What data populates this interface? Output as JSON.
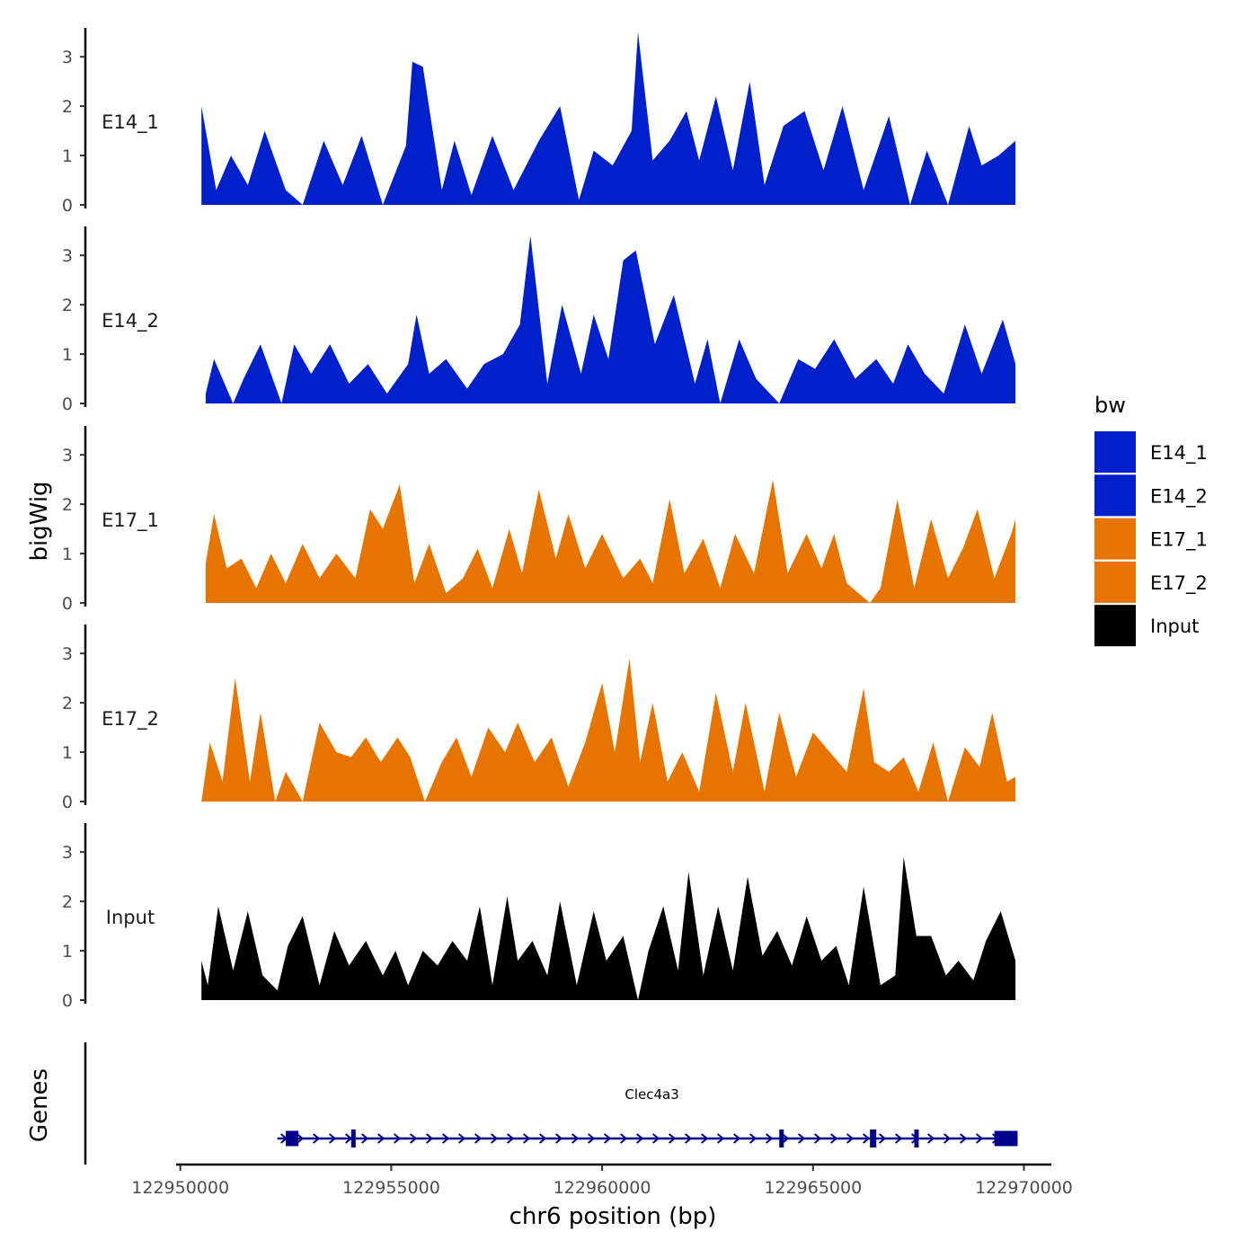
{
  "chart_data": {
    "type": "area",
    "title": "",
    "ylabel": "bigWig",
    "xlabel": "chr6 position (bp)",
    "xlim": [
      122949900,
      122970650
    ],
    "ylim": [
      0,
      3.55
    ],
    "x_ticks": [
      122950000,
      122955000,
      122960000,
      122965000,
      122970000
    ],
    "x_tick_labels": [
      "122950000",
      "122955000",
      "122960000",
      "122965000",
      "122970000"
    ],
    "y_ticks": [
      0,
      1,
      2,
      3
    ],
    "y_tick_labels": [
      "0",
      "1",
      "2",
      "3"
    ],
    "legend": {
      "title": "bw",
      "position": "right",
      "items": [
        {
          "label": "E14_1",
          "color": "#0020CC"
        },
        {
          "label": "E14_2",
          "color": "#0020CC"
        },
        {
          "label": "E17_1",
          "color": "#E87400"
        },
        {
          "label": "E17_2",
          "color": "#E87400"
        },
        {
          "label": "Input",
          "color": "#000000"
        }
      ]
    },
    "series": [
      {
        "name": "E14_1",
        "color": "#0020CC",
        "x": [
          122950500,
          122950850,
          122951200,
          122951600,
          122952000,
          122952500,
          122952900,
          122953400,
          122953850,
          122954300,
          122954800,
          122955350,
          122955500,
          122955750,
          122956200,
          122956500,
          122956900,
          122957400,
          122957900,
          122958500,
          122959000,
          122959450,
          122959800,
          122960250,
          122960700,
          122960850,
          122961200,
          122961600,
          122962000,
          122962300,
          122962700,
          122963100,
          122963500,
          122963850,
          122964300,
          122964800,
          122965250,
          122965700,
          122966200,
          122966800,
          122967300,
          122967700,
          122968200,
          122968700,
          122969000,
          122969400,
          122969800
        ],
        "y": [
          2.0,
          0.3,
          1.0,
          0.4,
          1.5,
          0.3,
          0.0,
          1.3,
          0.4,
          1.4,
          0.0,
          1.2,
          2.9,
          2.8,
          0.3,
          1.3,
          0.2,
          1.4,
          0.3,
          1.3,
          2.0,
          0.1,
          1.1,
          0.8,
          1.5,
          3.5,
          0.9,
          1.3,
          1.9,
          0.9,
          2.2,
          0.7,
          2.5,
          0.4,
          1.6,
          1.9,
          0.7,
          2.0,
          0.3,
          1.8,
          0.0,
          1.1,
          0.0,
          1.6,
          0.8,
          1.0,
          1.3
        ]
      },
      {
        "name": "E14_2",
        "color": "#0020CC",
        "x": [
          122950600,
          122950800,
          122951250,
          122951500,
          122951900,
          122952400,
          122952700,
          122953100,
          122953550,
          122954000,
          122954450,
          122954900,
          122955400,
          122955600,
          122955900,
          122956300,
          122956800,
          122957200,
          122957650,
          122958050,
          122958300,
          122958700,
          122959050,
          122959500,
          122959800,
          122960150,
          122960500,
          122960800,
          122961250,
          122961700,
          122962200,
          122962500,
          122962800,
          122963250,
          122963650,
          122964200,
          122964650,
          122965050,
          122965500,
          122966000,
          122966500,
          122966900,
          122967250,
          122967650,
          122968100,
          122968600,
          122969000,
          122969500,
          122969800
        ],
        "y": [
          0.2,
          0.9,
          0.0,
          0.5,
          1.2,
          0.0,
          1.2,
          0.6,
          1.2,
          0.4,
          0.8,
          0.2,
          0.8,
          1.8,
          0.6,
          0.9,
          0.3,
          0.8,
          1.0,
          1.6,
          3.4,
          0.4,
          2.0,
          0.6,
          1.8,
          0.9,
          2.9,
          3.1,
          1.2,
          2.2,
          0.4,
          1.3,
          0.0,
          1.3,
          0.5,
          0.0,
          0.9,
          0.7,
          1.3,
          0.5,
          0.9,
          0.4,
          1.2,
          0.6,
          0.2,
          1.6,
          0.6,
          1.7,
          0.8
        ]
      },
      {
        "name": "E17_1",
        "color": "#E87400",
        "x": [
          122950600,
          122950800,
          122951100,
          122951450,
          122951800,
          122952150,
          122952500,
          122952900,
          122953300,
          122953700,
          122954150,
          122954500,
          122954800,
          122955200,
          122955550,
          122955900,
          122956300,
          122956700,
          122957050,
          122957400,
          122957800,
          122958100,
          122958500,
          122958900,
          122959200,
          122959600,
          122960000,
          122960500,
          122960900,
          122961200,
          122961600,
          122961950,
          122962400,
          122962800,
          122963150,
          122963600,
          122964050,
          122964400,
          122964850,
          122965200,
          122965500,
          122965800,
          122966350,
          122966600,
          122967000,
          122967400,
          122967800,
          122968200,
          122968550,
          122968900,
          122969300,
          122969700,
          122969800
        ],
        "y": [
          0.8,
          1.8,
          0.7,
          0.9,
          0.3,
          1.0,
          0.4,
          1.2,
          0.5,
          1.0,
          0.5,
          1.9,
          1.5,
          2.4,
          0.4,
          1.2,
          0.2,
          0.5,
          1.1,
          0.3,
          1.5,
          0.6,
          2.3,
          0.9,
          1.8,
          0.7,
          1.4,
          0.5,
          0.9,
          0.4,
          2.1,
          0.6,
          1.3,
          0.3,
          1.4,
          0.6,
          2.5,
          0.6,
          1.4,
          0.7,
          1.4,
          0.4,
          0.0,
          0.3,
          2.1,
          0.3,
          1.7,
          0.5,
          1.1,
          1.9,
          0.5,
          1.4,
          1.7
        ]
      },
      {
        "name": "E17_2",
        "color": "#E87400",
        "x": [
          122950500,
          122950700,
          122951000,
          122951300,
          122951650,
          122951900,
          122952250,
          122952500,
          122952900,
          122953300,
          122953700,
          122954050,
          122954400,
          122954750,
          122955150,
          122955450,
          122955800,
          122956200,
          122956550,
          122956900,
          122957300,
          122957700,
          122958000,
          122958400,
          122958800,
          122959200,
          122959600,
          122960000,
          122960300,
          122960650,
          122960900,
          122961200,
          122961550,
          122961900,
          122962300,
          122962700,
          122963100,
          122963400,
          122963850,
          122964200,
          122964600,
          122965000,
          122965400,
          122965800,
          122966200,
          122966450,
          122966800,
          122967150,
          122967500,
          122967850,
          122968200,
          122968600,
          122968950,
          122969250,
          122969600,
          122969800
        ],
        "y": [
          0.0,
          1.2,
          0.4,
          2.5,
          0.4,
          1.8,
          0.0,
          0.6,
          0.0,
          1.6,
          1.0,
          0.9,
          1.3,
          0.8,
          1.3,
          0.9,
          0.0,
          0.8,
          1.3,
          0.5,
          1.5,
          1.0,
          1.6,
          0.8,
          1.3,
          0.3,
          1.2,
          2.4,
          1.0,
          2.9,
          0.8,
          2.0,
          0.4,
          1.0,
          0.2,
          2.2,
          0.6,
          2.0,
          0.2,
          1.8,
          0.5,
          1.4,
          1.0,
          0.6,
          2.3,
          0.8,
          0.6,
          0.9,
          0.2,
          1.2,
          0.0,
          1.1,
          0.7,
          1.8,
          0.4,
          0.5
        ]
      },
      {
        "name": "Input",
        "color": "#000000",
        "x": [
          122950500,
          122950650,
          122950900,
          122951250,
          122951600,
          122951950,
          122952300,
          122952550,
          122952900,
          122953300,
          122953650,
          122954000,
          122954400,
          122954800,
          122955100,
          122955400,
          122955750,
          122956100,
          122956450,
          122956800,
          122957100,
          122957400,
          122957750,
          122958000,
          122958350,
          122958700,
          122959000,
          122959400,
          122959800,
          122960100,
          122960500,
          122960850,
          122961100,
          122961450,
          122961800,
          122962050,
          122962400,
          122962750,
          122963100,
          122963450,
          122963800,
          122964150,
          122964500,
          122964850,
          122965200,
          122965550,
          122965850,
          122966200,
          122966600,
          122966950,
          122967150,
          122967450,
          122967800,
          122968150,
          122968450,
          122968800,
          122969100,
          122969450,
          122969800
        ],
        "y": [
          0.8,
          0.3,
          1.9,
          0.6,
          1.8,
          0.5,
          0.2,
          1.1,
          1.7,
          0.3,
          1.4,
          0.7,
          1.2,
          0.5,
          1.0,
          0.3,
          1.0,
          0.7,
          1.2,
          0.8,
          1.9,
          0.3,
          2.1,
          0.8,
          1.2,
          0.5,
          2.0,
          0.3,
          1.8,
          0.8,
          1.3,
          0.0,
          1.0,
          1.9,
          0.6,
          2.6,
          0.5,
          1.9,
          0.6,
          2.5,
          0.9,
          1.4,
          0.7,
          1.7,
          0.8,
          1.1,
          0.3,
          2.3,
          0.3,
          0.5,
          2.9,
          1.3,
          1.3,
          0.5,
          0.8,
          0.4,
          1.2,
          1.8,
          0.8
        ]
      }
    ],
    "gene_track": {
      "label": "Genes",
      "gene_name": "Clec4a3",
      "color": "#00008B",
      "start": 122952300,
      "end": 122969850,
      "strand": "+",
      "exons": [
        [
          122952500,
          122952800
        ],
        [
          122954050,
          122954150
        ],
        [
          122964200,
          122964280
        ],
        [
          122966350,
          122966500
        ],
        [
          122967400,
          122967480
        ],
        [
          122969300,
          122969850
        ]
      ]
    }
  }
}
